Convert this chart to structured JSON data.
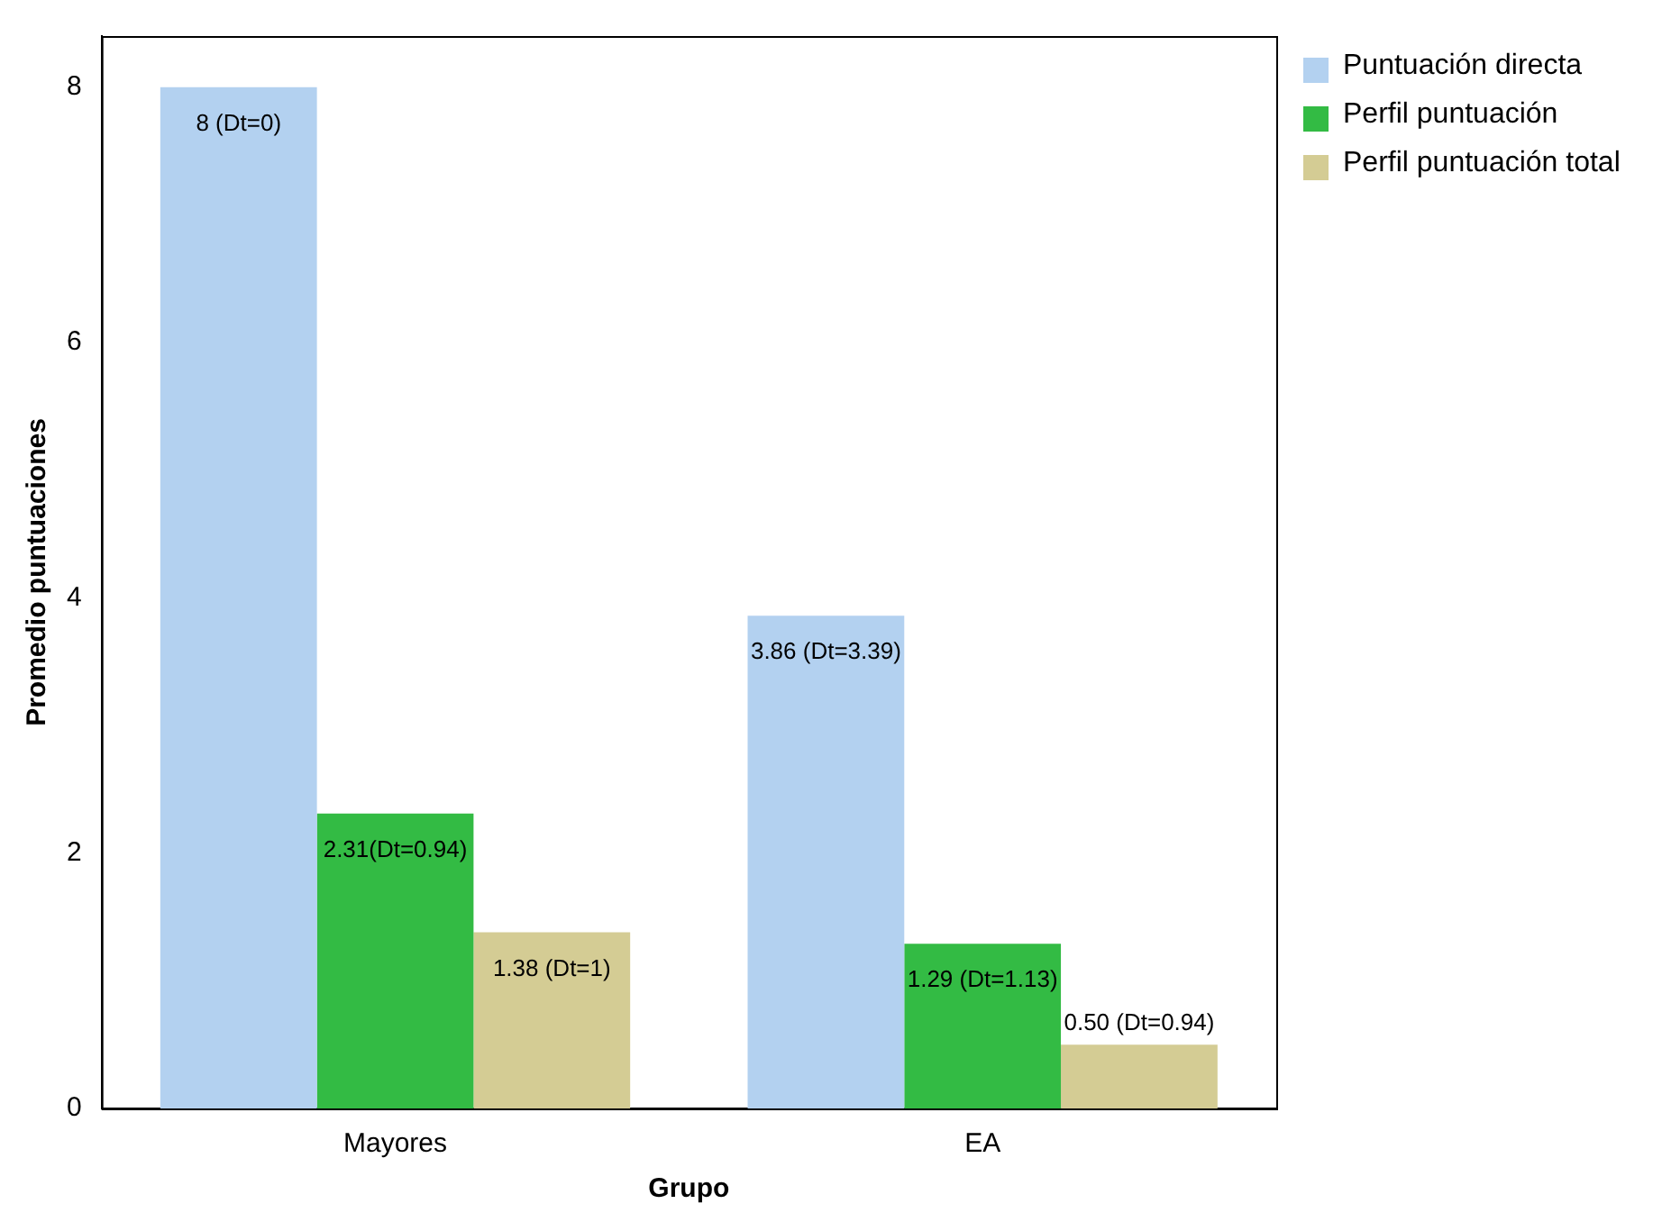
{
  "chart_data": {
    "type": "bar",
    "xlabel": "Grupo",
    "ylabel": "Promedio puntuaciones",
    "categories": [
      "Mayores",
      "EA"
    ],
    "series": [
      {
        "name": "Puntuación directa",
        "color": "#b3d1f0",
        "values": [
          8,
          3.86
        ],
        "value_labels": [
          "8 (Dt=0)",
          "3.86 (Dt=3.39)"
        ]
      },
      {
        "name": "Perfil puntuación",
        "color": "#33bb44",
        "values": [
          2.31,
          1.29
        ],
        "value_labels": [
          "2.31(Dt=0.94)",
          "1.29 (Dt=1.13)"
        ]
      },
      {
        "name": "Perfil puntuación total",
        "color": "#d4cc94",
        "values": [
          1.38,
          0.5
        ],
        "value_labels": [
          "1.38 (Dt=1)",
          "0.50 (Dt=0.94)"
        ]
      }
    ],
    "ylim": [
      0,
      8.4
    ],
    "yticks": [
      0,
      2,
      4,
      6,
      8
    ],
    "grid": false,
    "legend": "top right"
  }
}
